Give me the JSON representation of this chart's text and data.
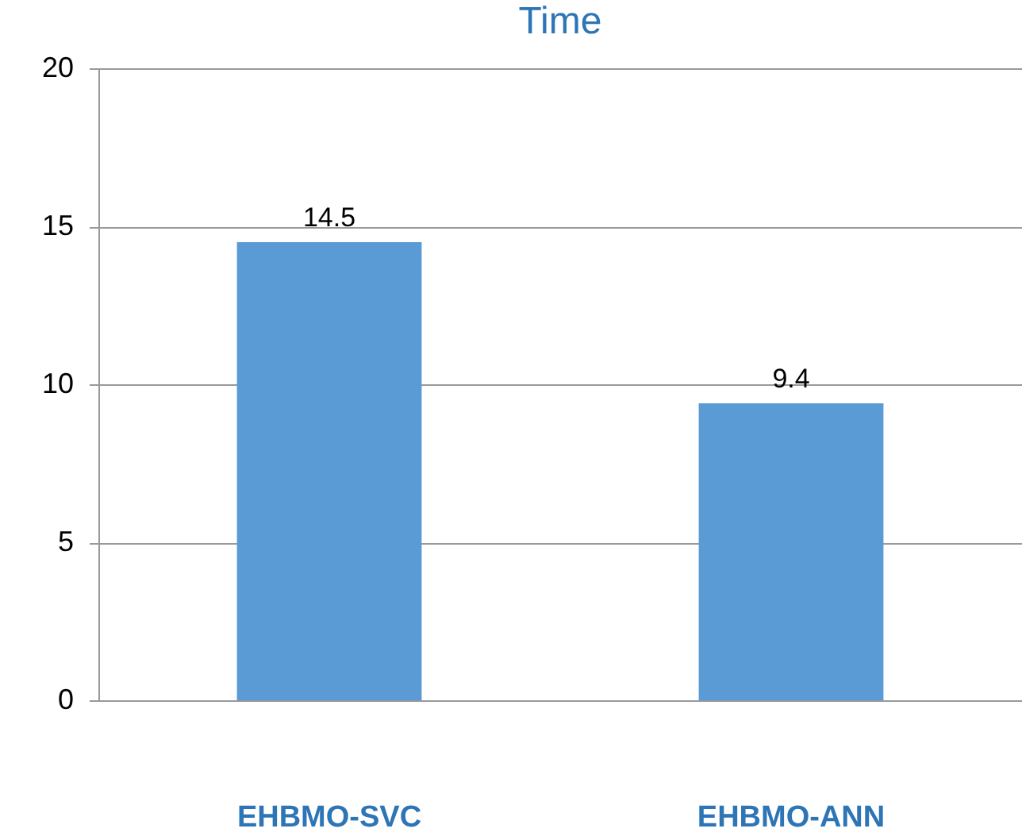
{
  "chart_data": {
    "type": "bar",
    "title": "Time",
    "categories": [
      "EHBMO-SVC",
      "EHBMO-ANN"
    ],
    "values": [
      14.5,
      9.4
    ],
    "color": "#5b9bd5",
    "ylim": [
      0,
      20
    ],
    "yticks": [
      0,
      5,
      10,
      15,
      20
    ],
    "grid": "y",
    "data_labels": true
  }
}
